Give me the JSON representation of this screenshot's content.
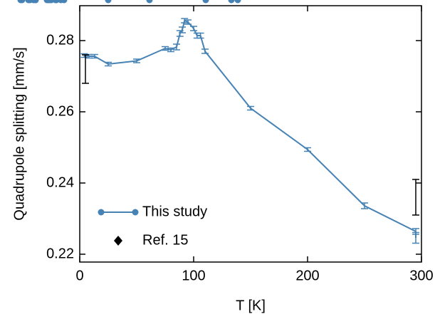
{
  "chart_data": {
    "type": "scatter",
    "xlabel": "T [K]",
    "ylabel": "Quadrupole splitting [mm/s]",
    "xlim": [
      0,
      300
    ],
    "xticks": [
      0,
      100,
      200,
      300
    ],
    "ylim": [
      0.2178,
      0.2898
    ],
    "yticks": [
      0.22,
      0.24,
      0.26,
      0.28
    ],
    "legend": "lower left",
    "series": [
      {
        "name": "This study",
        "color": "#4682b4",
        "line": true,
        "marker": "circle",
        "x": [
          4,
          8,
          13,
          25,
          50,
          75,
          80,
          85,
          88,
          90,
          92,
          95,
          100,
          103,
          106,
          110,
          150,
          200,
          250,
          295,
          295
        ],
        "values": [
          0.2758,
          0.2756,
          0.2756,
          0.2734,
          0.2743,
          0.2778,
          0.2774,
          0.2782,
          0.282,
          0.283,
          0.2856,
          0.2852,
          0.2834,
          0.2814,
          0.2814,
          0.277,
          0.261,
          0.2494,
          0.2336,
          0.2264,
          0.2246
        ],
        "errors": [
          0.0005,
          0.0005,
          0.0005,
          0.0005,
          0.0005,
          0.0005,
          0.0005,
          0.0008,
          0.0008,
          0.0008,
          0.0006,
          0.0006,
          0.0006,
          0.0007,
          0.0007,
          0.0006,
          0.0005,
          0.0005,
          0.0008,
          0.0008,
          0.0015
        ]
      },
      {
        "name": "Ref. 15",
        "color": "#000000",
        "line": false,
        "marker": "diamond",
        "x": [
          5,
          295
        ],
        "values": [
          0.272,
          0.236
        ],
        "errors": [
          0.004,
          0.005
        ]
      }
    ]
  }
}
